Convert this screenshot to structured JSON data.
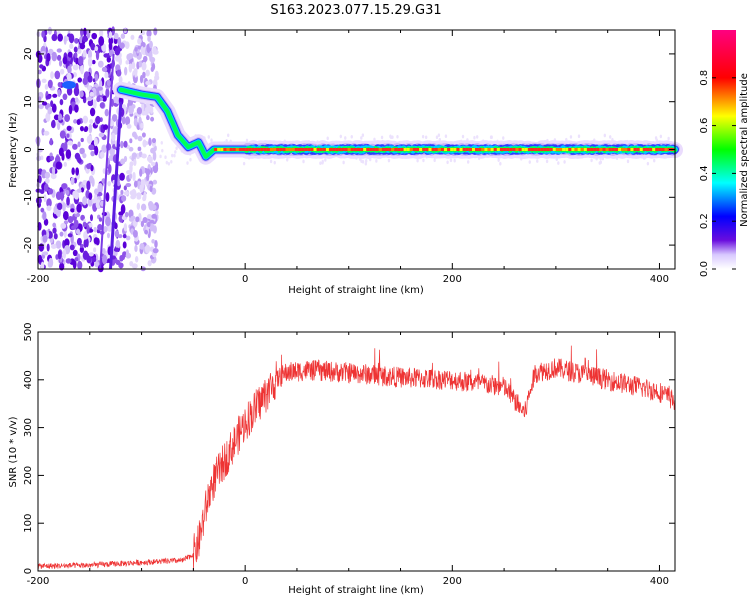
{
  "chart_data": [
    {
      "type": "heatmap",
      "title": "S163.2023.077.15.29.G31",
      "xlabel": "Height of straight line (km)",
      "ylabel": "Frequency (Hz)",
      "xlim": [
        -200,
        415
      ],
      "ylim": [
        -25,
        25
      ],
      "xticks": [
        -200,
        0,
        200,
        400
      ],
      "yticks": [
        -20,
        -10,
        0,
        10,
        20
      ],
      "colorbar": {
        "label": "Normalized spectral amplitude",
        "range": [
          0.0,
          1.0
        ],
        "ticks": [
          "0.0",
          "0.2",
          "0.4",
          "0.6",
          "0.8"
        ],
        "colormap": [
          "#ffffff",
          "#6a0dde",
          "#0000ff",
          "#00ffff",
          "#00ff00",
          "#ffff00",
          "#ff0000",
          "#ff00ff"
        ]
      },
      "trace": {
        "x": [
          -120,
          -100,
          -85,
          -75,
          -65,
          -55,
          -45,
          -38,
          -30,
          0,
          100,
          200,
          300,
          400
        ],
        "y": [
          12.5,
          11.5,
          11,
          8,
          3,
          0.5,
          1.5,
          -1.5,
          0,
          0,
          0,
          0,
          0,
          0
        ]
      },
      "noise_region": {
        "x_from": -200,
        "x_to": -85
      }
    },
    {
      "type": "line",
      "xlabel": "Height of straight line (km)",
      "ylabel": "SNR (10 * v/v)",
      "xlim": [
        -200,
        415
      ],
      "ylim": [
        0,
        500
      ],
      "xticks": [
        -200,
        0,
        200,
        400
      ],
      "yticks": [
        0,
        100,
        200,
        300,
        400,
        500
      ],
      "series": [
        {
          "color": "#ee3333",
          "x": [
            -200,
            -150,
            -100,
            -60,
            -50,
            -45,
            -40,
            -35,
            -30,
            -20,
            -10,
            0,
            10,
            20,
            30,
            40,
            60,
            100,
            150,
            200,
            250,
            270,
            275,
            280,
            300,
            350,
            400,
            415
          ],
          "y": [
            10,
            12,
            18,
            22,
            35,
            60,
            110,
            160,
            190,
            230,
            270,
            310,
            340,
            370,
            400,
            415,
            420,
            415,
            405,
            400,
            385,
            330,
            375,
            415,
            425,
            400,
            375,
            355
          ]
        }
      ]
    }
  ]
}
